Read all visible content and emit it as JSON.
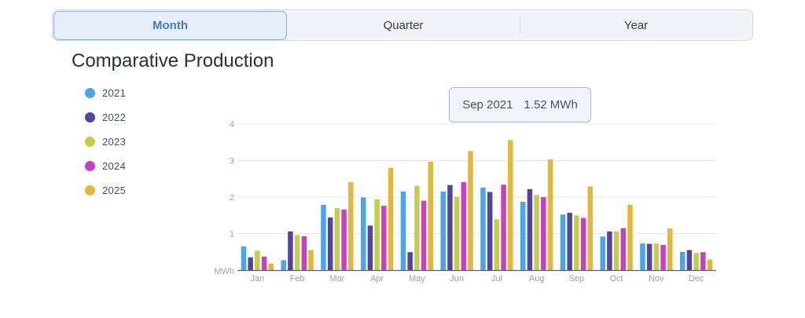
{
  "tabs": [
    {
      "label": "Month",
      "active": true
    },
    {
      "label": "Quarter",
      "active": false
    },
    {
      "label": "Year",
      "active": false
    }
  ],
  "chart_data": {
    "type": "bar",
    "title": "Comparative Production",
    "ylabel": "MWh",
    "ylim": [
      0,
      4
    ],
    "yticks": [
      1,
      2,
      3,
      4
    ],
    "grid": true,
    "legend_placement": "left",
    "categories": [
      "Jan",
      "Feb",
      "Mar",
      "Apr",
      "May",
      "Jun",
      "Jul",
      "Aug",
      "Sep",
      "Oct",
      "Nov",
      "Dec"
    ],
    "series": [
      {
        "name": "2021",
        "color": "#4aa6ea",
        "values": [
          0.65,
          0.27,
          1.79,
          1.99,
          2.15,
          2.15,
          2.26,
          1.87,
          1.52,
          0.92,
          0.73,
          0.5
        ]
      },
      {
        "name": "2022",
        "color": "#55449e",
        "values": [
          0.35,
          1.06,
          1.44,
          1.22,
          0.49,
          2.33,
          2.14,
          2.22,
          1.57,
          1.06,
          0.72,
          0.55
        ]
      },
      {
        "name": "2023",
        "color": "#c3cf4a",
        "values": [
          0.53,
          0.96,
          1.7,
          1.94,
          2.31,
          2.01,
          1.39,
          2.06,
          1.5,
          1.06,
          0.73,
          0.47
        ]
      },
      {
        "name": "2024",
        "color": "#cb3ec1",
        "values": [
          0.37,
          0.93,
          1.66,
          1.76,
          1.9,
          2.41,
          2.34,
          2.0,
          1.43,
          1.15,
          0.69,
          0.49
        ]
      },
      {
        "name": "2025",
        "color": "#e2b73a",
        "values": [
          0.18,
          0.55,
          2.41,
          2.8,
          2.97,
          3.26,
          3.56,
          3.03,
          2.29,
          1.79,
          1.14,
          0.29
        ]
      }
    ],
    "tooltip": {
      "period": "Sep 2021",
      "value": "1.52 MWh"
    }
  }
}
